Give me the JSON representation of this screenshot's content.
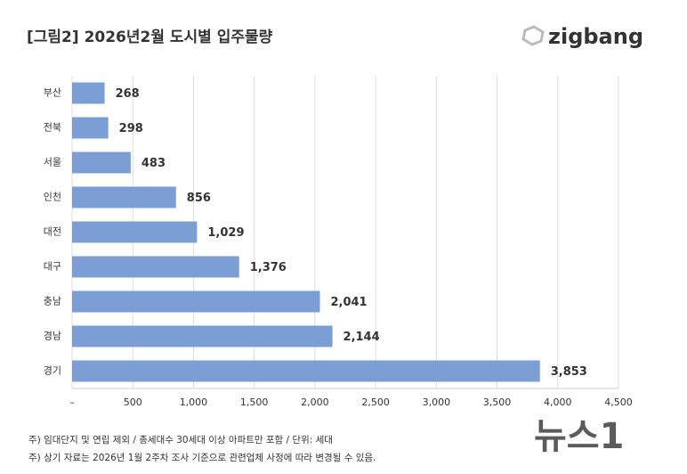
{
  "chart_data": {
    "type": "bar",
    "orientation": "horizontal",
    "title": "[그림2] 2026년2월 도시별 입주물량",
    "brand": "zigbang",
    "categories": [
      "부산",
      "전북",
      "서울",
      "인천",
      "대전",
      "대구",
      "충남",
      "경남",
      "경기"
    ],
    "values": [
      268,
      298,
      483,
      856,
      1029,
      1376,
      2041,
      2144,
      3853
    ],
    "value_labels": [
      "268",
      "298",
      "483",
      "856",
      "1,029",
      "1,376",
      "2,041",
      "2,144",
      "3,853"
    ],
    "color": "#7b9fd4",
    "xlim": [
      0,
      4500
    ],
    "xticks": [
      {
        "value": 0,
        "label": "–"
      },
      500,
      {
        "value": 1000,
        "label": "1,000"
      },
      {
        "value": 1500,
        "label": "1,500"
      },
      {
        "value": 2000,
        "label": "2,000"
      },
      {
        "value": 2500,
        "label": "2,500"
      },
      {
        "value": 3000,
        "label": "3,000"
      },
      {
        "value": 3500,
        "label": "3,500"
      },
      {
        "value": 4000,
        "label": "4,000"
      },
      {
        "value": 4500,
        "label": "4,500"
      }
    ],
    "grid": true,
    "notes": [
      "주) 임대단지 및 연립 제외 / 총세대수 30세대 이상 아파트만 포함 / 단위: 세대",
      "주) 상기 자료는 2026년 1월 2주차 조사 기준으로 관련업체 사정에 따라 변경될 수 있음."
    ],
    "watermark": "뉴스1"
  }
}
